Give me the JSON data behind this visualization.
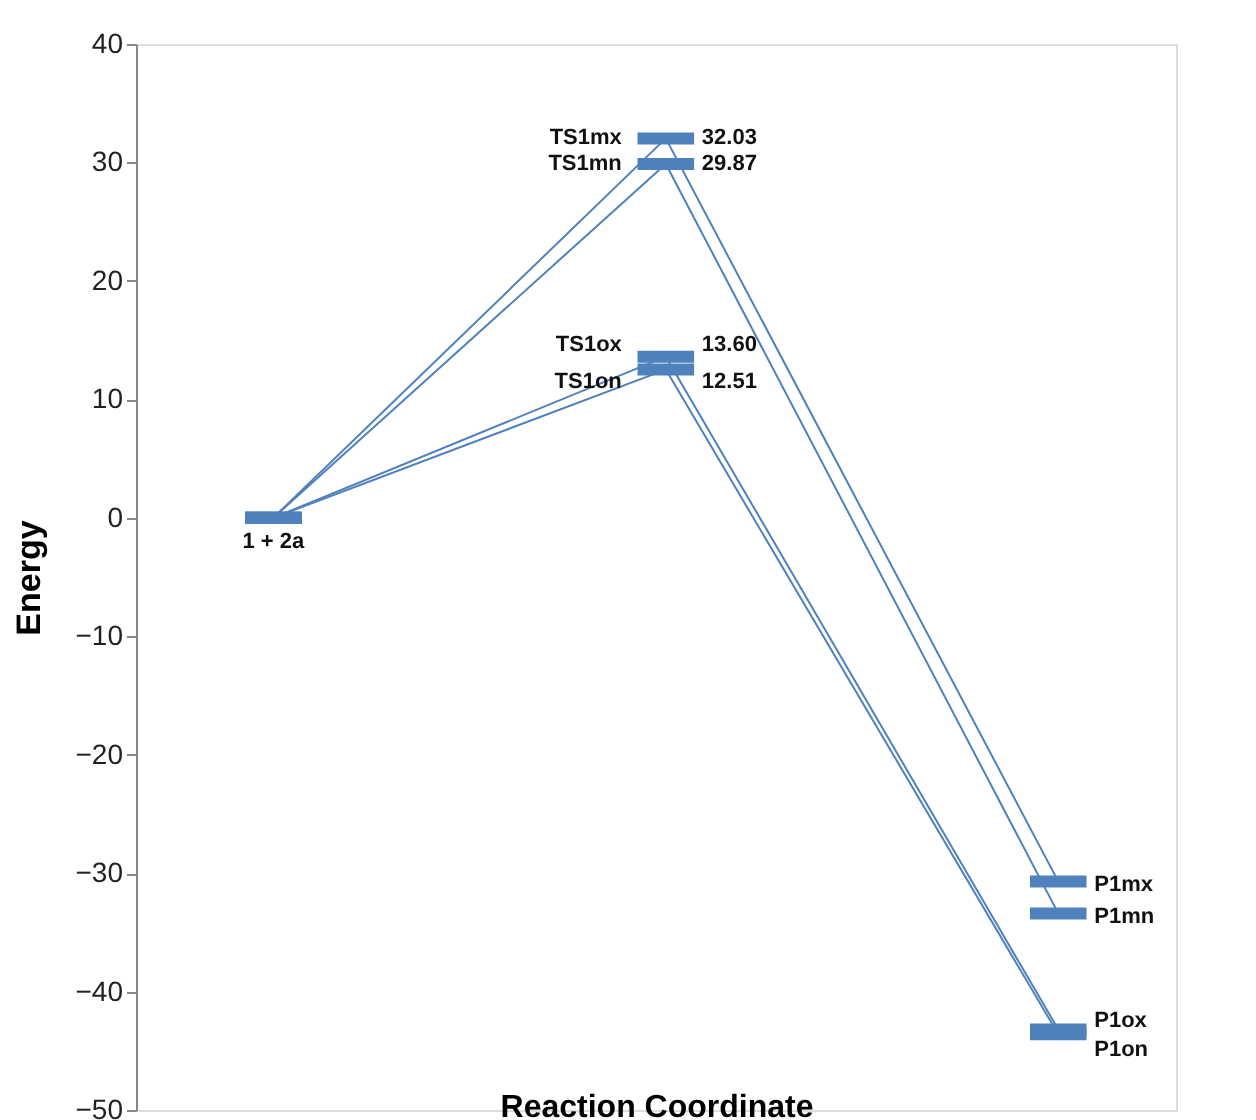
{
  "chart_data": {
    "type": "line",
    "xlabel": "Reaction Coordinate",
    "ylabel": "Energy",
    "categories": [
      null,
      null,
      null
    ],
    "ylim": [
      -50,
      40
    ],
    "yticks": [
      -50,
      -40,
      -30,
      -20,
      -10,
      0,
      10,
      20,
      30,
      40
    ],
    "grid": false,
    "legend": false,
    "tick_labels": "y",
    "series": [
      {
        "color": "#4f81bd",
        "values": [
          0,
          32.03,
          -30.7
        ],
        "value_labels": [
          null,
          "32.03",
          null
        ]
      },
      {
        "color": "#4f81bd",
        "values": [
          0,
          29.87,
          -33.4
        ],
        "value_labels": [
          null,
          "29.87",
          null
        ]
      },
      {
        "color": "#4f81bd",
        "values": [
          0,
          13.6,
          -43.2
        ],
        "value_labels": [
          null,
          "13.60",
          null
        ]
      },
      {
        "color": "#4f81bd",
        "values": [
          0,
          12.51,
          -43.6
        ],
        "value_labels": [
          null,
          "12.51",
          null
        ]
      }
    ],
    "annotations": [
      "1 + 2a",
      "TS1mx",
      "TS1mn",
      "TS1ox",
      "TS1on",
      "P1mx",
      "P1mn",
      "P1ox",
      "P1on"
    ]
  }
}
